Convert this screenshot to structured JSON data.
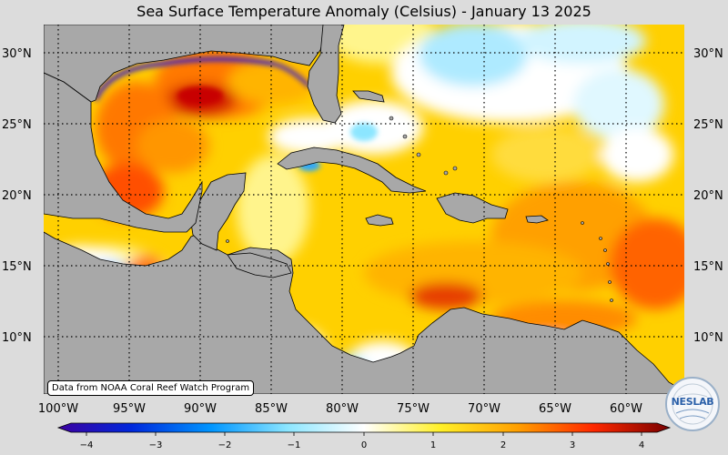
{
  "title": "Sea Surface Temperature Anomaly (Celsius) - January 13 2025",
  "lat_labels": [
    "30°N",
    "25°N",
    "20°N",
    "15°N",
    "10°N"
  ],
  "lon_labels": [
    "100°W",
    "95°W",
    "90°W",
    "85°W",
    "80°W",
    "75°W",
    "70°W",
    "65°W",
    "60°W"
  ],
  "colorbar": {
    "ticks": [
      "−4",
      "−3",
      "−2",
      "−1",
      "0",
      "1",
      "2",
      "3",
      "4"
    ],
    "range": [
      -4,
      4
    ],
    "colors": [
      "#3c00a0",
      "#0050ff",
      "#00b4ff",
      "#b4f0ff",
      "#ffffff",
      "#fff03c",
      "#ffb400",
      "#ff5000",
      "#c80000",
      "#780000"
    ]
  },
  "source_note": "Data from NOAA Coral Reef Watch Program",
  "logo": {
    "icon": "nesdis-lab-logo",
    "text": "NESLAB"
  },
  "map_colors": {
    "land": "#a8a8a8",
    "background": "#dcdcdc",
    "ocean_base": "#ffd200"
  }
}
